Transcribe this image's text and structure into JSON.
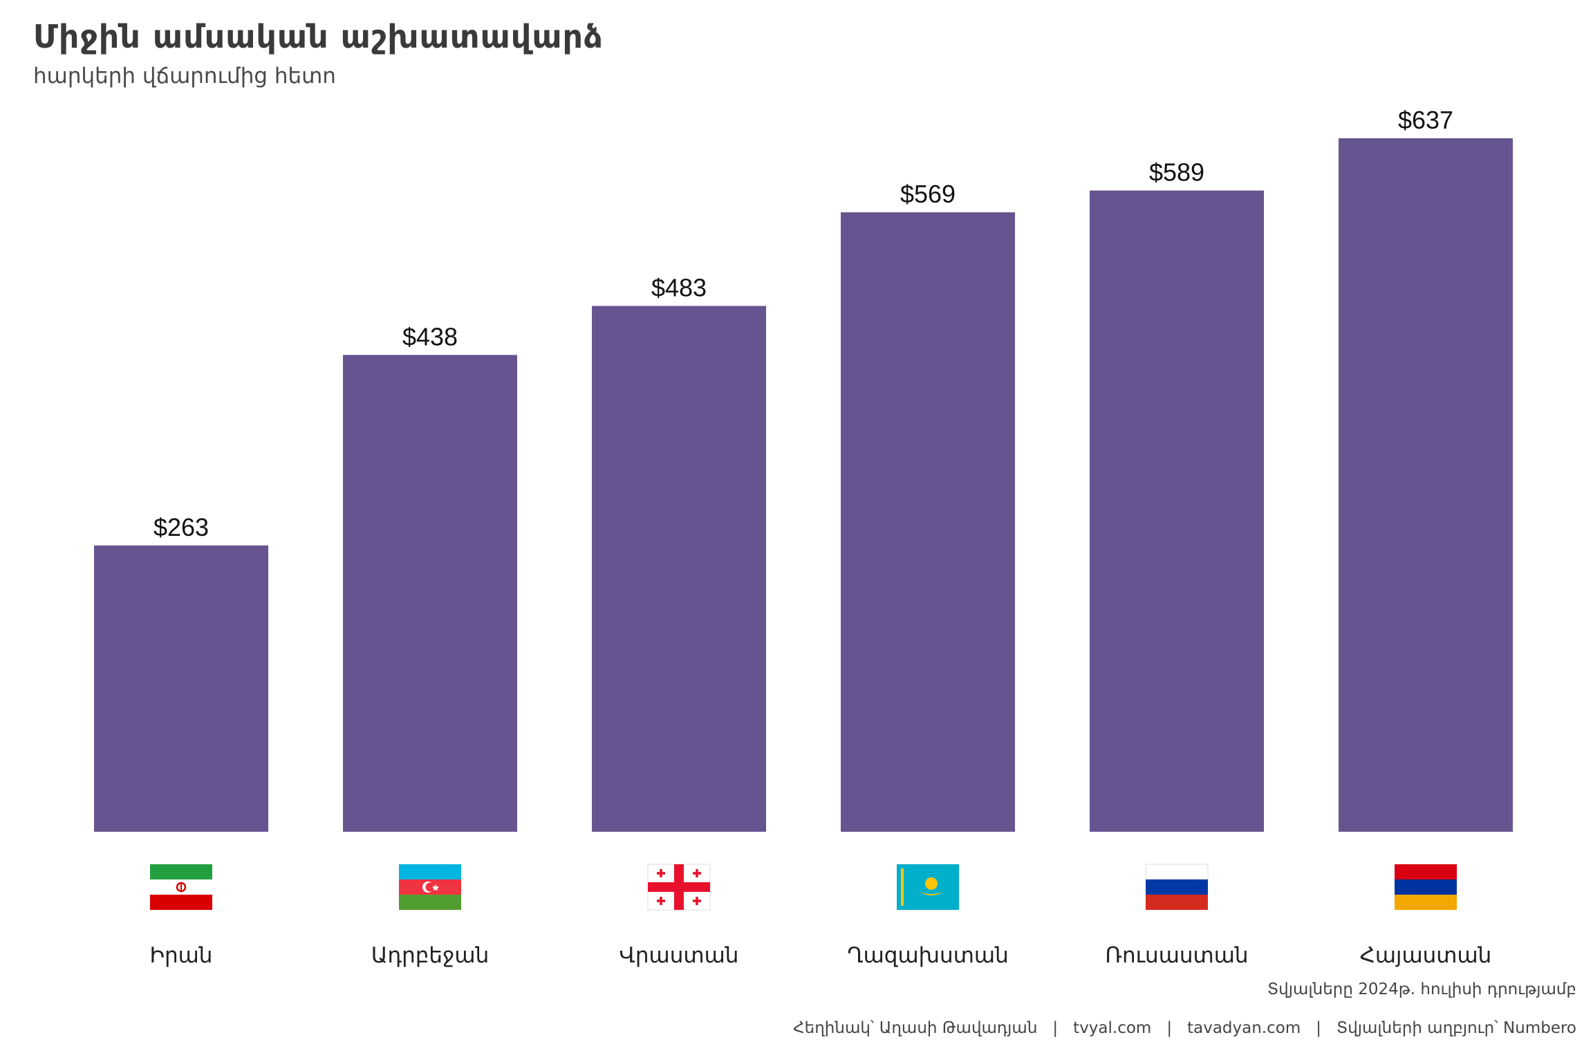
{
  "title": "Միջին ամսական աշխատավարձ",
  "subtitle": "հարկերի վճարումից հետո",
  "caption": "Տվյալները 2024թ. հուլիսի դրությամբ",
  "footer": {
    "author": "Հեղինակ՝ Աղասի Թավադյան",
    "site1": "tvyal.com",
    "site2": "tavadyan.com",
    "source": "Տվյալների աղբյուր՝ Numbero",
    "separator": "|"
  },
  "colors": {
    "bar": "#665491",
    "text": "#111111"
  },
  "chart_data": {
    "type": "bar",
    "title": "Միջին ամսական աշխատավարձ",
    "subtitle": "հարկերի վճարումից հետո",
    "xlabel": "",
    "ylabel": "",
    "ylim": [
      0,
      637
    ],
    "grid": false,
    "legend": "none",
    "value_prefix": "$",
    "categories": [
      "Իրան",
      "Ադրբեջան",
      "Վրաստան",
      "Ղազախստան",
      "Ռուսաստան",
      "Հայաստան"
    ],
    "flags": [
      "iran-flag-icon",
      "azerbaijan-flag-icon",
      "georgia-flag-icon",
      "kazakhstan-flag-icon",
      "russia-flag-icon",
      "armenia-flag-icon"
    ],
    "values": [
      263,
      438,
      483,
      569,
      589,
      637
    ],
    "data_labels": [
      "$263",
      "$438",
      "$483",
      "$569",
      "$589",
      "$637"
    ]
  }
}
